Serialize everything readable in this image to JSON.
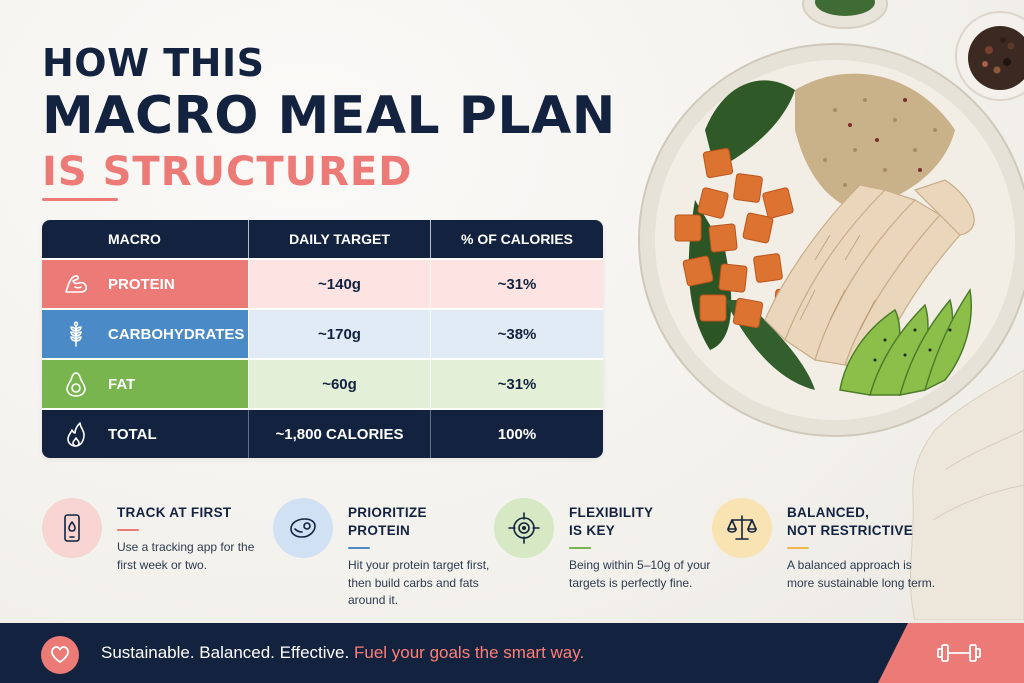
{
  "title": {
    "line1": "HOW THIS",
    "line2": "MACRO MEAL PLAN",
    "line3": "IS STRUCTURED"
  },
  "table": {
    "headers": [
      "MACRO",
      "DAILY TARGET",
      "% OF CALORIES"
    ],
    "rows": [
      {
        "macro": "PROTEIN",
        "target": "~140g",
        "percent": "~31%",
        "icon": "bicep-icon",
        "color": "#ec7b78"
      },
      {
        "macro": "CARBOHYDRATES",
        "target": "~170g",
        "percent": "~38%",
        "icon": "wheat-icon",
        "color": "#4a8bc7"
      },
      {
        "macro": "FAT",
        "target": "~60g",
        "percent": "~31%",
        "icon": "avocado-icon",
        "color": "#78b54f"
      },
      {
        "macro": "TOTAL",
        "target": "~1,800 CALORIES",
        "percent": "100%",
        "icon": "flame-icon",
        "color": "#13233f"
      }
    ]
  },
  "tips": [
    {
      "title": "TRACK AT FIRST",
      "body": "Use a tracking app for the first week or two.",
      "icon": "phone-icon",
      "color": "#ec7b78"
    },
    {
      "title": "PRIORITIZE\nPROTEIN",
      "body": "Hit your protein target first, then build carbs and fats around it.",
      "icon": "steak-icon",
      "color": "#4a8bc7"
    },
    {
      "title": "FLEXIBILITY\nIS KEY",
      "body": "Being within 5–10g of your targets is perfectly fine.",
      "icon": "target-icon",
      "color": "#78b54f"
    },
    {
      "title": "BALANCED,\nNOT RESTRICTIVE",
      "body": "A balanced approach is more sustainable long term.",
      "icon": "scale-icon",
      "color": "#f0b849"
    }
  ],
  "footer": {
    "text": "Sustainable. Balanced. Effective.",
    "accent": "Fuel your goals the smart way.",
    "left_icon": "heart-icon",
    "right_icon": "dumbbell-icon"
  },
  "colors": {
    "navy": "#13233f",
    "coral": "#ec7b78",
    "blue": "#4a8bc7",
    "green": "#78b54f",
    "gold": "#f0b849"
  }
}
